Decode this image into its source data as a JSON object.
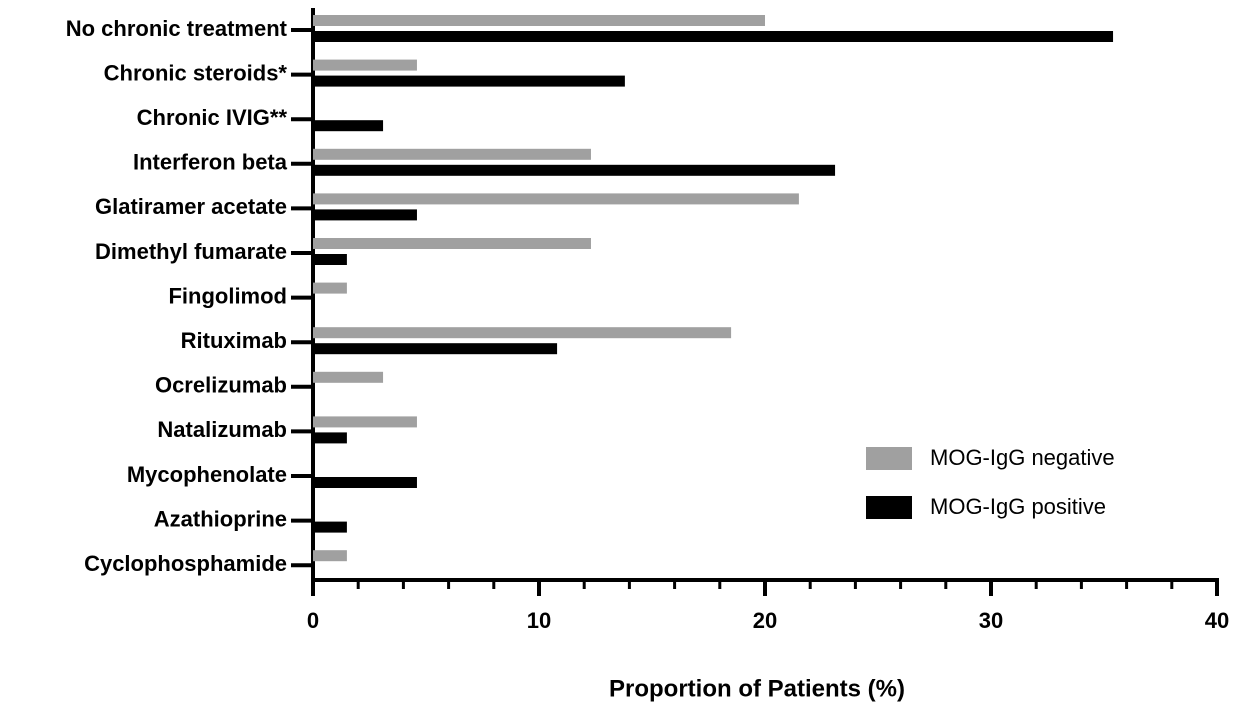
{
  "chart_data": {
    "type": "barh",
    "xlabel": "Proportion of Patients (%)",
    "categories": [
      "No chronic treatment",
      "Chronic steroids*",
      "Chronic IVIG**",
      "Interferon beta",
      "Glatiramer acetate",
      "Dimethyl fumarate",
      "Fingolimod",
      "Rituximab",
      "Ocrelizumab",
      "Natalizumab",
      "Mycophenolate",
      "Azathioprine",
      "Cyclophosphamide"
    ],
    "series": [
      {
        "name": "MOG-IgG negative",
        "color": "#a0a0a0",
        "values": [
          20.0,
          4.6,
          0,
          12.3,
          21.5,
          12.3,
          1.5,
          18.5,
          3.1,
          4.6,
          0,
          0,
          1.5
        ]
      },
      {
        "name": "MOG-IgG positive",
        "color": "#000000",
        "values": [
          35.4,
          13.8,
          3.1,
          23.1,
          4.6,
          1.5,
          0,
          10.8,
          0,
          1.5,
          4.6,
          1.5,
          0
        ]
      }
    ],
    "xlim": [
      0,
      40
    ],
    "xticks": [
      0,
      10,
      20,
      30,
      40
    ],
    "xticks_minor": [
      2,
      4,
      6,
      8,
      12,
      14,
      16,
      18,
      22,
      24,
      26,
      28,
      32,
      34,
      36,
      38
    ],
    "legend": "lower right"
  }
}
